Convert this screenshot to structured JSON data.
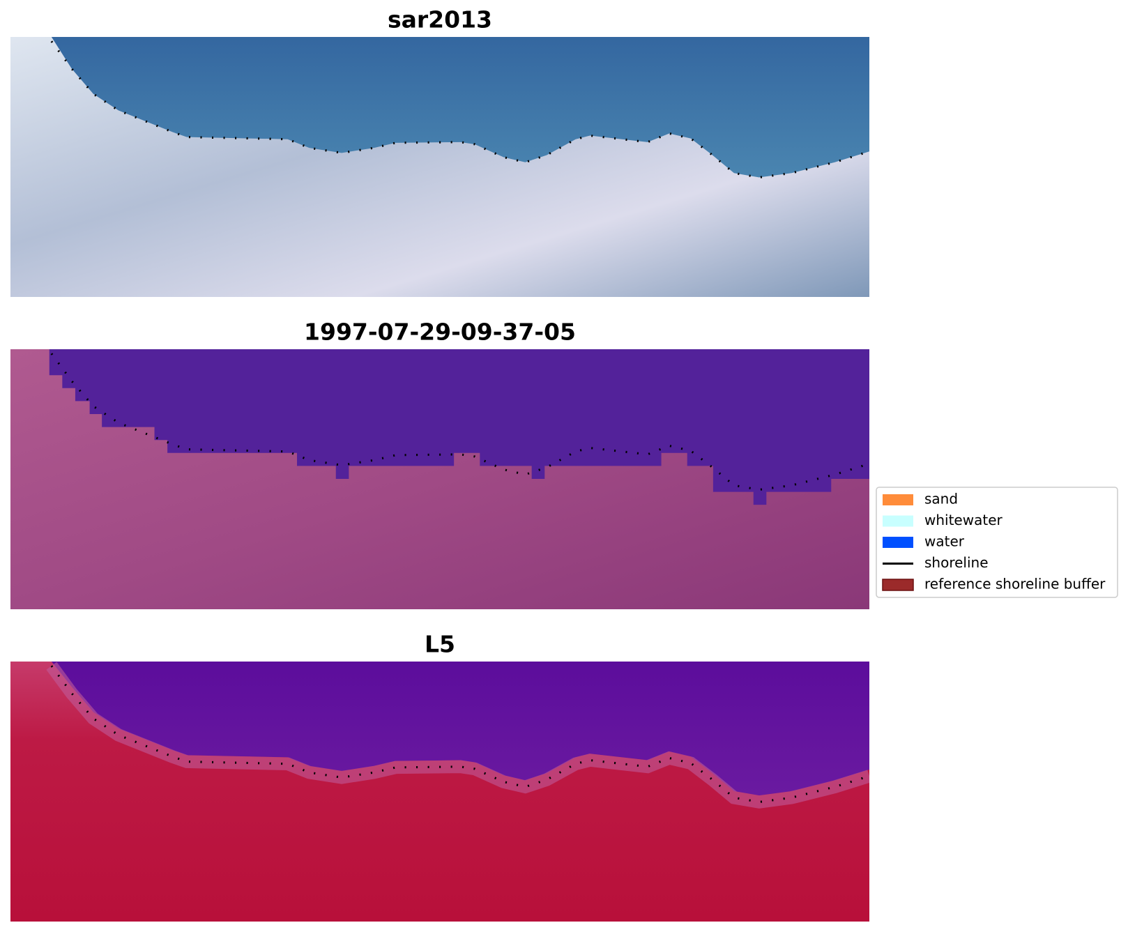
{
  "panels": [
    {
      "title": "sar2013"
    },
    {
      "title": "1997-07-29-09-37-05"
    },
    {
      "title": "L5"
    }
  ],
  "legend": {
    "items": [
      {
        "label": "sand",
        "color": "#ff8c3a",
        "type": "patch"
      },
      {
        "label": "whitewater",
        "color": "#c8ffff",
        "type": "patch"
      },
      {
        "label": "water",
        "color": "#0050ff",
        "type": "patch"
      },
      {
        "label": "shoreline",
        "color": "#000000",
        "type": "line"
      },
      {
        "label": "reference shoreline buffer",
        "color": "#9b2a2a",
        "type": "patch"
      }
    ]
  }
}
